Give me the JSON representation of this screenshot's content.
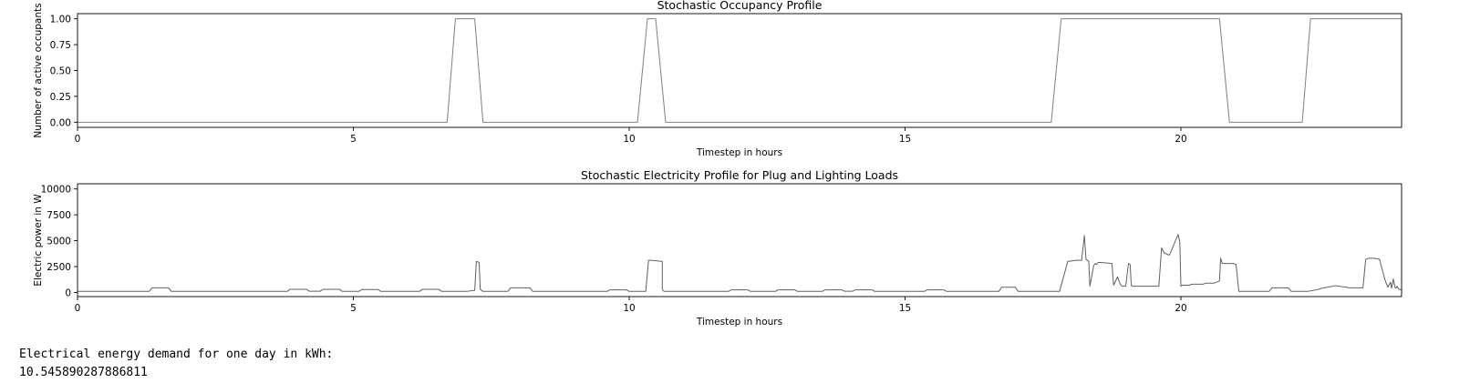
{
  "chart_data": [
    {
      "type": "line",
      "title": "Stochastic Occupancy Profile",
      "xlabel": "Timestep in hours",
      "ylabel": "Number of active occupants",
      "xlim": [
        0,
        24
      ],
      "ylim": [
        -0.05,
        1.05
      ],
      "xticks": [
        0,
        5,
        10,
        15,
        20
      ],
      "xtick_labels": [
        "0",
        "5",
        "10",
        "15",
        "20"
      ],
      "yticks": [
        0,
        0.25,
        0.5,
        0.75,
        1.0
      ],
      "ytick_labels": [
        "0.00",
        "0.25",
        "0.50",
        "0.75",
        "1.00"
      ],
      "grid": false,
      "series": [
        {
          "color": "#808080",
          "x": [
            0,
            6.7,
            6.85,
            7.2,
            7.35,
            10.15,
            10.33,
            10.48,
            10.66,
            17.65,
            17.83,
            20.7,
            20.88,
            22.2,
            22.35,
            24
          ],
          "y": [
            0,
            0,
            1,
            1,
            0,
            0,
            1,
            1,
            0,
            0,
            1,
            1,
            0,
            0,
            1,
            1
          ]
        }
      ]
    },
    {
      "type": "line",
      "title": "Stochastic Electricity Profile for Plug and Lighting Loads",
      "xlabel": "Timestep in hours",
      "ylabel": "Electric power in W",
      "xlim": [
        0,
        24
      ],
      "ylim": [
        -400,
        10500
      ],
      "xticks": [
        0,
        5,
        10,
        15,
        20
      ],
      "xtick_labels": [
        "0",
        "5",
        "10",
        "15",
        "20"
      ],
      "yticks": [
        0,
        2500,
        5000,
        7500,
        10000
      ],
      "ytick_labels": [
        "0",
        "2500",
        "5000",
        "7500",
        "10000"
      ],
      "grid": false,
      "series": [
        {
          "color": "#606060",
          "x": [
            0,
            1.3,
            1.35,
            1.65,
            1.7,
            3.8,
            3.85,
            4.15,
            4.2,
            4.4,
            4.45,
            4.75,
            4.8,
            5.1,
            5.15,
            5.45,
            5.5,
            6.2,
            6.25,
            6.55,
            6.6,
            7.05,
            7.2,
            7.23,
            7.28,
            7.3,
            7.35,
            7.45,
            7.8,
            7.85,
            8.2,
            8.25,
            9.6,
            9.65,
            9.95,
            10,
            10.3,
            10.35,
            10.4,
            10.6,
            10.6,
            10.63,
            10.68,
            11.8,
            11.85,
            12.15,
            12.2,
            12.65,
            12.7,
            13,
            13.05,
            13.5,
            13.55,
            13.85,
            13.9,
            14.05,
            14.1,
            14.4,
            14.45,
            15.35,
            15.4,
            15.7,
            15.75,
            16.7,
            16.75,
            17,
            17.05,
            17.8,
            17.95,
            18.1,
            18.2,
            18.25,
            18.28,
            18.33,
            18.35,
            18.42,
            18.45,
            18.47,
            18.5,
            18.55,
            18.75,
            18.78,
            18.85,
            18.9,
            18.93,
            19,
            19.05,
            19.08,
            19.1,
            19.12,
            19.2,
            19.6,
            19.65,
            19.7,
            19.75,
            19.78,
            19.8,
            19.95,
            19.98,
            20,
            20.02,
            20.05,
            20.15,
            20.2,
            20.4,
            20.45,
            20.6,
            20.65,
            20.7,
            20.72,
            20.75,
            20.95,
            21,
            21.05,
            21.6,
            21.65,
            21.95,
            22,
            22.3,
            22.5,
            22.55,
            22.75,
            22.8,
            23,
            23.05,
            23.3,
            23.35,
            23.4,
            23.5,
            23.6,
            23.7,
            23.75,
            23.8,
            23.82,
            23.85,
            23.88,
            23.9,
            23.92,
            23.95,
            24
          ],
          "y": [
            100,
            100,
            450,
            450,
            100,
            100,
            300,
            300,
            120,
            120,
            300,
            300,
            100,
            100,
            280,
            280,
            100,
            100,
            300,
            300,
            100,
            100,
            200,
            3000,
            2900,
            300,
            100,
            100,
            100,
            450,
            450,
            100,
            100,
            250,
            250,
            100,
            100,
            3100,
            3100,
            3000,
            300,
            100,
            100,
            100,
            250,
            250,
            100,
            100,
            250,
            250,
            100,
            100,
            250,
            250,
            120,
            120,
            250,
            250,
            100,
            100,
            250,
            250,
            100,
            100,
            500,
            500,
            100,
            100,
            3000,
            3100,
            3100,
            5500,
            3200,
            3000,
            600,
            2600,
            2800,
            2700,
            2900,
            2900,
            2800,
            700,
            1500,
            800,
            600,
            600,
            2800,
            2700,
            700,
            600,
            600,
            600,
            4300,
            3800,
            3700,
            3600,
            3700,
            5600,
            4900,
            600,
            700,
            700,
            700,
            800,
            800,
            900,
            900,
            1000,
            1100,
            3300,
            2800,
            2800,
            2700,
            100,
            100,
            450,
            450,
            100,
            100,
            300,
            400,
            600,
            650,
            500,
            450,
            450,
            3200,
            3300,
            3300,
            3200,
            1200,
            500,
            1000,
            400,
            1300,
            500,
            400,
            600,
            300,
            250
          ]
        }
      ]
    }
  ],
  "output": {
    "label": "Electrical energy demand for one day in kWh:",
    "value": "10.545890287886811"
  }
}
